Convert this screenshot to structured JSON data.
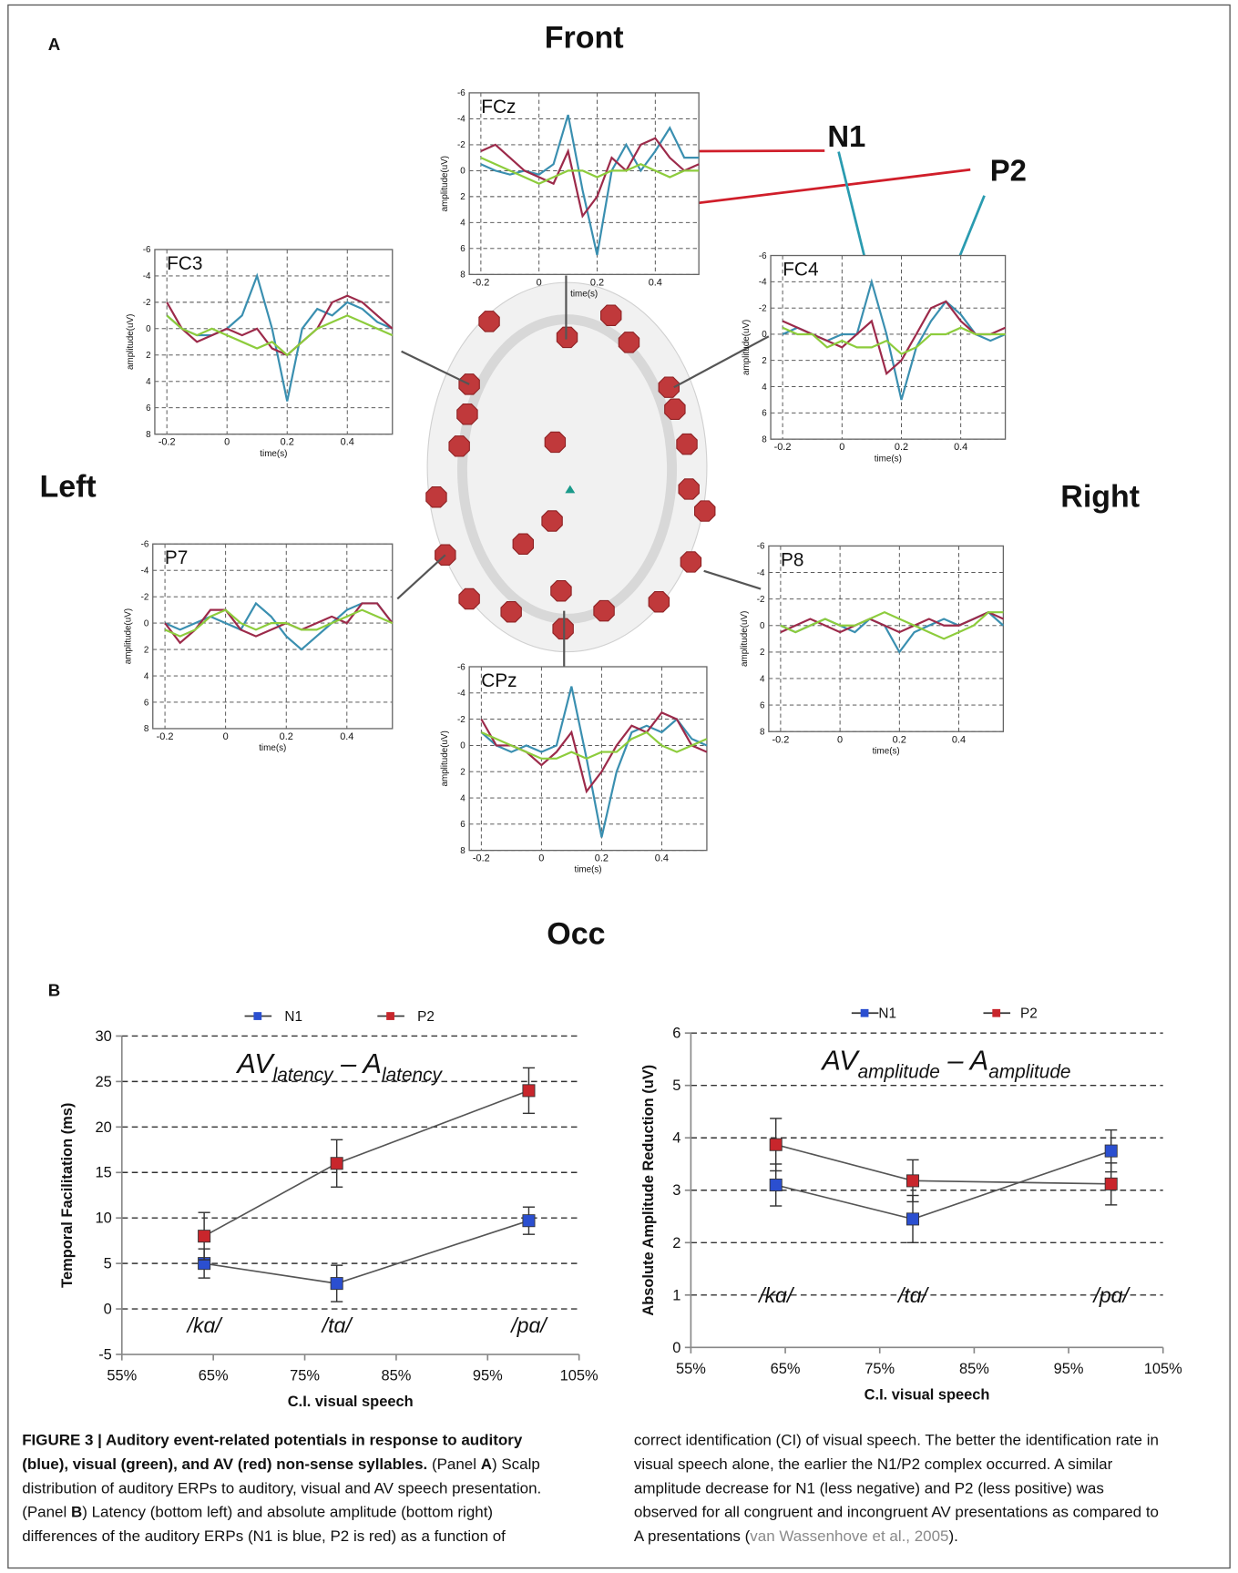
{
  "panel_a": {
    "label": "A",
    "front": "Front",
    "left": "Left",
    "right": "Right",
    "occ": "Occ",
    "annotations": [
      "N1",
      "P2"
    ]
  },
  "panel_b": {
    "label": "B"
  },
  "chart_data": [
    {
      "type": "line",
      "title": "FCz",
      "x": [
        -0.2,
        -0.15,
        -0.1,
        -0.05,
        0,
        0.05,
        0.1,
        0.15,
        0.2,
        0.25,
        0.3,
        0.35,
        0.4,
        0.45,
        0.5,
        0.55
      ],
      "xlim": [
        -0.24,
        0.55
      ],
      "xticks": [
        -0.2,
        0,
        0.2,
        0.4
      ],
      "ylim": [
        -6,
        8
      ],
      "y_inverted": true,
      "yticks": [
        -6,
        -4,
        -2,
        0,
        2,
        4,
        6,
        8
      ],
      "xlabel": "time(s)",
      "ylabel": "amplitude(uV)",
      "series": [
        {
          "color": "#3a8fb0",
          "values": [
            -0.5,
            0,
            0.3,
            0,
            0.3,
            -0.5,
            -4.3,
            1.5,
            6.5,
            0,
            -2,
            0,
            -1.5,
            -3.3,
            -1,
            -1
          ]
        },
        {
          "color": "#9c2a4a",
          "values": [
            -1.5,
            -2,
            -1,
            0,
            0.5,
            1,
            -1.5,
            3.5,
            2,
            -1,
            0,
            -2,
            -2.5,
            -1,
            0,
            -0.5
          ]
        },
        {
          "color": "#8dcc3c",
          "values": [
            -1,
            -0.5,
            0,
            0.5,
            1,
            0.5,
            0,
            0,
            0.5,
            0,
            0,
            -0.5,
            0,
            0.5,
            0,
            0
          ]
        }
      ]
    },
    {
      "type": "line",
      "title": "FC3",
      "x": [
        -0.2,
        -0.15,
        -0.1,
        -0.05,
        0,
        0.05,
        0.1,
        0.15,
        0.2,
        0.25,
        0.3,
        0.35,
        0.4,
        0.45,
        0.5,
        0.55
      ],
      "xlim": [
        -0.24,
        0.55
      ],
      "xticks": [
        -0.2,
        0,
        0.2,
        0.4
      ],
      "ylim": [
        -6,
        8
      ],
      "y_inverted": true,
      "yticks": [
        -6,
        -4,
        -2,
        0,
        2,
        4,
        6,
        8
      ],
      "xlabel": "time(s)",
      "ylabel": "amplitude(uV)",
      "series": [
        {
          "color": "#3a8fb0",
          "values": [
            -1,
            0,
            0.5,
            0.5,
            0,
            -1,
            -4,
            0,
            5.5,
            0,
            -1.5,
            -1,
            -2,
            -1.5,
            -0.5,
            0
          ]
        },
        {
          "color": "#9c2a4a",
          "values": [
            -2,
            0,
            1,
            0.5,
            0,
            0.5,
            0,
            1.5,
            2,
            1,
            0,
            -2,
            -2.5,
            -2,
            -1,
            0
          ]
        },
        {
          "color": "#8dcc3c",
          "values": [
            -1,
            0,
            0.5,
            0,
            0.5,
            1,
            1.5,
            1,
            2,
            1,
            0,
            -0.5,
            -1,
            -0.5,
            0,
            0.5
          ]
        }
      ]
    },
    {
      "type": "line",
      "title": "FC4",
      "x": [
        -0.2,
        -0.15,
        -0.1,
        -0.05,
        0,
        0.05,
        0.1,
        0.15,
        0.2,
        0.25,
        0.3,
        0.35,
        0.4,
        0.45,
        0.5,
        0.55
      ],
      "xlim": [
        -0.24,
        0.55
      ],
      "xticks": [
        -0.2,
        0,
        0.2,
        0.4
      ],
      "ylim": [
        -6,
        8
      ],
      "y_inverted": true,
      "yticks": [
        -6,
        -4,
        -2,
        0,
        2,
        4,
        6,
        8
      ],
      "xlabel": "time(s)",
      "ylabel": "amplitude(uV)",
      "series": [
        {
          "color": "#3a8fb0",
          "values": [
            0,
            -0.5,
            0,
            0.5,
            0,
            0,
            -4,
            0,
            5,
            1,
            -1,
            -2.5,
            -1.5,
            0,
            0.5,
            0
          ]
        },
        {
          "color": "#9c2a4a",
          "values": [
            -1,
            -0.5,
            0,
            0.5,
            1,
            0,
            -1,
            3,
            2,
            0,
            -2,
            -2.5,
            -1,
            0,
            0,
            -0.5
          ]
        },
        {
          "color": "#8dcc3c",
          "values": [
            -0.5,
            0,
            0,
            1,
            0.5,
            1,
            1,
            0.5,
            1.5,
            1,
            0,
            0,
            -0.5,
            0,
            0,
            0
          ]
        }
      ]
    },
    {
      "type": "line",
      "title": "P7",
      "x": [
        -0.2,
        -0.15,
        -0.1,
        -0.05,
        0,
        0.05,
        0.1,
        0.15,
        0.2,
        0.25,
        0.3,
        0.35,
        0.4,
        0.45,
        0.5,
        0.55
      ],
      "xlim": [
        -0.24,
        0.55
      ],
      "xticks": [
        -0.2,
        0,
        0.2,
        0.4
      ],
      "ylim": [
        -6,
        8
      ],
      "y_inverted": true,
      "yticks": [
        -6,
        -4,
        -2,
        0,
        2,
        4,
        6,
        8
      ],
      "xlabel": "time(s)",
      "ylabel": "amplitude(uV)",
      "series": [
        {
          "color": "#3a8fb0",
          "values": [
            0,
            0.5,
            0,
            -0.5,
            0,
            0.5,
            -1.5,
            -0.5,
            1,
            2,
            1,
            0,
            -1,
            -1.5,
            -1.5,
            0
          ]
        },
        {
          "color": "#9c2a4a",
          "values": [
            0,
            1.5,
            0.5,
            -1,
            -1,
            0.5,
            1,
            0.5,
            0,
            0.5,
            0,
            -0.5,
            0,
            -1.5,
            -1.5,
            0
          ]
        },
        {
          "color": "#8dcc3c",
          "values": [
            0.5,
            1,
            0.5,
            -0.5,
            -1,
            0,
            0.5,
            0,
            0,
            0.5,
            0.5,
            0,
            -0.5,
            -1,
            -0.5,
            0
          ]
        }
      ]
    },
    {
      "type": "line",
      "title": "P8",
      "x": [
        -0.2,
        -0.15,
        -0.1,
        -0.05,
        0,
        0.05,
        0.1,
        0.15,
        0.2,
        0.25,
        0.3,
        0.35,
        0.4,
        0.45,
        0.5,
        0.55
      ],
      "xlim": [
        -0.24,
        0.55
      ],
      "xticks": [
        -0.2,
        0,
        0.2,
        0.4
      ],
      "ylim": [
        -6,
        8
      ],
      "y_inverted": true,
      "yticks": [
        -6,
        -4,
        -2,
        0,
        2,
        4,
        6,
        8
      ],
      "xlabel": "time(s)",
      "ylabel": "amplitude(uV)",
      "series": [
        {
          "color": "#3a8fb0",
          "values": [
            0,
            0.5,
            0,
            -0.5,
            0,
            0.5,
            -0.5,
            0,
            2,
            0.5,
            0,
            -0.5,
            0,
            -0.5,
            -1,
            0
          ]
        },
        {
          "color": "#9c2a4a",
          "values": [
            0.5,
            0,
            -0.5,
            0,
            0.5,
            0,
            -0.5,
            0,
            0.5,
            0,
            -0.5,
            0,
            0,
            -0.5,
            -1,
            -0.5
          ]
        },
        {
          "color": "#8dcc3c",
          "values": [
            0,
            0.5,
            0,
            -0.5,
            0,
            0,
            -0.5,
            -1,
            -0.5,
            0,
            0.5,
            1,
            0.5,
            0,
            -1,
            -1
          ]
        }
      ]
    },
    {
      "type": "line",
      "title": "CPz",
      "x": [
        -0.2,
        -0.15,
        -0.1,
        -0.05,
        0,
        0.05,
        0.1,
        0.15,
        0.2,
        0.25,
        0.3,
        0.35,
        0.4,
        0.45,
        0.5,
        0.55
      ],
      "xlim": [
        -0.24,
        0.55
      ],
      "xticks": [
        -0.2,
        0,
        0.2,
        0.4
      ],
      "ylim": [
        -6,
        8
      ],
      "y_inverted": true,
      "yticks": [
        -6,
        -4,
        -2,
        0,
        2,
        4,
        6,
        8
      ],
      "xlabel": "time(s)",
      "ylabel": "amplitude(uV)",
      "series": [
        {
          "color": "#3a8fb0",
          "values": [
            -1,
            0,
            0.5,
            0,
            0.5,
            0,
            -4.5,
            1,
            7,
            2,
            -1,
            -1.5,
            -1,
            -2,
            -0.5,
            0
          ]
        },
        {
          "color": "#9c2a4a",
          "values": [
            -2,
            0,
            0,
            0.5,
            1.5,
            0.5,
            -1,
            3.5,
            2,
            0,
            -1.5,
            -1,
            -2.5,
            -2,
            0,
            0.5
          ]
        },
        {
          "color": "#8dcc3c",
          "values": [
            -1,
            -0.5,
            0,
            0.5,
            1,
            1,
            0.5,
            1,
            0.5,
            0.5,
            -0.5,
            -1,
            0,
            0.5,
            0,
            -0.5
          ]
        }
      ]
    },
    {
      "type": "line",
      "title_parts": [
        {
          "text": "AV"
        },
        {
          "text": "latency",
          "sub": true
        },
        {
          "text": " – A"
        },
        {
          "text": "latency",
          "sub": true
        }
      ],
      "x": [
        64,
        78.5,
        99.5
      ],
      "point_labels": [
        "/kɑ/",
        "/tɑ/",
        "/pɑ/"
      ],
      "xlim": [
        55,
        105
      ],
      "xticks": [
        {
          "value": 55,
          "label": "55%"
        },
        {
          "value": 65,
          "label": "65%"
        },
        {
          "value": 75,
          "label": "75%"
        },
        {
          "value": 85,
          "label": "85%"
        },
        {
          "value": 95,
          "label": "95%"
        },
        {
          "value": 105,
          "label": "105%"
        }
      ],
      "ylim": [
        -5,
        30
      ],
      "yticks": [
        -5,
        0,
        5,
        10,
        15,
        20,
        25,
        30
      ],
      "grid": true,
      "xlabel": "C.I. visual speech",
      "ylabel": "Temporal Facilitation (ms)",
      "series": [
        {
          "name": "N1",
          "color": "#2b4fd0",
          "values": [
            5,
            2.8,
            9.7
          ],
          "errors": [
            1.6,
            2,
            1.5
          ]
        },
        {
          "name": "P2",
          "color": "#c8262c",
          "values": [
            8,
            16,
            24
          ],
          "errors": [
            2.6,
            2.6,
            2.5
          ]
        }
      ]
    },
    {
      "type": "line",
      "title_parts": [
        {
          "text": "AV"
        },
        {
          "text": "amplitude",
          "sub": true
        },
        {
          "text": " – A"
        },
        {
          "text": "amplitude",
          "sub": true
        }
      ],
      "x": [
        64,
        78.5,
        99.5
      ],
      "point_labels": [
        "/kɑ/",
        "/tɑ/",
        "/pɑ/"
      ],
      "xlim": [
        55,
        105
      ],
      "xticks": [
        {
          "value": 55,
          "label": "55%"
        },
        {
          "value": 65,
          "label": "65%"
        },
        {
          "value": 75,
          "label": "75%"
        },
        {
          "value": 85,
          "label": "85%"
        },
        {
          "value": 95,
          "label": "95%"
        },
        {
          "value": 105,
          "label": "105%"
        }
      ],
      "ylim": [
        0,
        6
      ],
      "yticks": [
        0,
        1,
        2,
        3,
        4,
        5,
        6
      ],
      "grid": true,
      "xlabel": "C.I. visual speech",
      "ylabel": "Absolute Amplitude Reduction (uV)",
      "series": [
        {
          "name": "N1",
          "color": "#2b4fd0",
          "values": [
            3.1,
            2.45,
            3.75
          ],
          "errors": [
            0.4,
            0.45,
            0.4
          ]
        },
        {
          "name": "P2",
          "color": "#c8262c",
          "values": [
            3.87,
            3.18,
            3.12
          ],
          "errors": [
            0.5,
            0.4,
            0.4
          ]
        }
      ]
    }
  ],
  "caption": {
    "left": [
      [
        {
          "text": "FIGURE 3 | Auditory event-related potentials in response to auditory",
          "bold": true
        }
      ],
      [
        {
          "text": "(blue), visual (green), and AV (red) non-sense syllables.",
          "bold": true
        },
        {
          "text": " (Panel "
        },
        {
          "text": "A",
          "bold": true
        },
        {
          "text": ") Scalp"
        }
      ],
      [
        {
          "text": "distribution of auditory ERPs to auditory, visual and AV speech presentation."
        }
      ],
      [
        {
          "text": "(Panel "
        },
        {
          "text": "B",
          "bold": true
        },
        {
          "text": ") Latency (bottom left) and absolute amplitude (bottom right)"
        }
      ],
      [
        {
          "text": "differences of the auditory ERPs (N1 is blue, P2 is red) as a function of"
        }
      ]
    ],
    "right": [
      [
        {
          "text": "correct identification (CI) of visual speech. The better the identification rate in"
        }
      ],
      [
        {
          "text": "visual speech alone, the earlier the N1/P2 complex occurred. A similar"
        }
      ],
      [
        {
          "text": "amplitude decrease for N1 (less negative) and P2 (less positive) was"
        }
      ],
      [
        {
          "text": "observed for all congruent and incongruent AV presentations as compared to"
        }
      ],
      [
        {
          "text": "A presentations ("
        },
        {
          "text": "van Wassenhove et al., 2005",
          "link": true
        },
        {
          "text": ")."
        }
      ]
    ]
  }
}
